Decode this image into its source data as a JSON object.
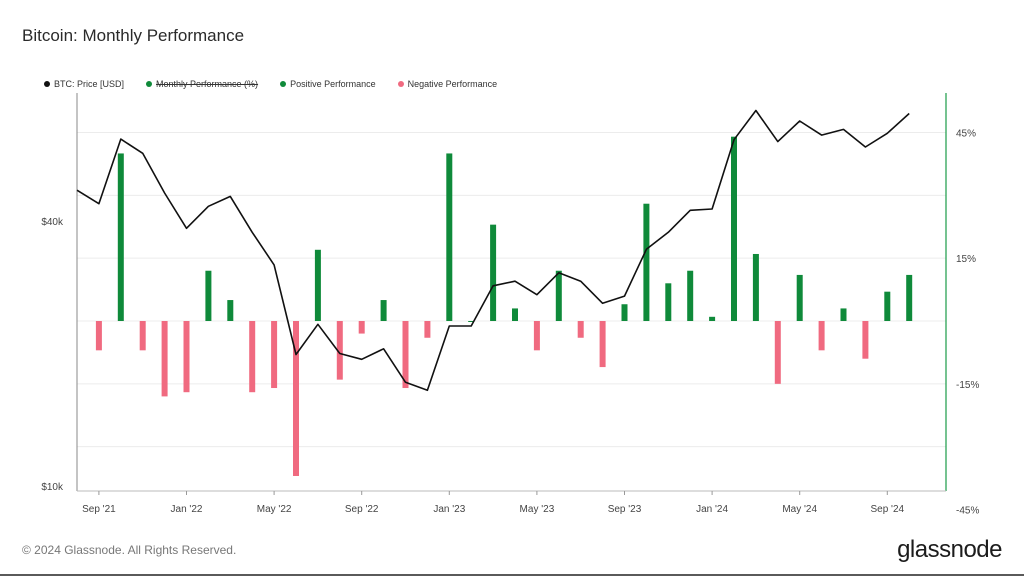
{
  "title": "Bitcoin: Monthly Performance",
  "legend": [
    {
      "label": "BTC: Price [USD]",
      "color": "#111111",
      "struck": false
    },
    {
      "label": "Monthly Performance (%)",
      "color": "#0f8a3a",
      "struck": true
    },
    {
      "label": "Positive Performance",
      "color": "#0f8a3a",
      "struck": false
    },
    {
      "label": "Negative Performance",
      "color": "#f06a80",
      "struck": false
    }
  ],
  "footer": "© 2024 Glassnode. All Rights Reserved.",
  "logo": "glassnode",
  "colors": {
    "positive": "#0f8a3a",
    "negative": "#f06a80",
    "price": "#111111",
    "grid": "#ececec",
    "right_axis": "#1a9b48"
  },
  "chart_data": {
    "type": "bar+line",
    "x_ticks": [
      "Sep '21",
      "Jan '22",
      "May '22",
      "Sep '22",
      "Jan '23",
      "May '23",
      "Sep '23",
      "Jan '24",
      "May '24",
      "Sep '24"
    ],
    "months": [
      "2021-08",
      "2021-09",
      "2021-10",
      "2021-11",
      "2021-12",
      "2022-01",
      "2022-02",
      "2022-03",
      "2022-04",
      "2022-05",
      "2022-06",
      "2022-07",
      "2022-08",
      "2022-09",
      "2022-10",
      "2022-11",
      "2022-12",
      "2023-01",
      "2023-02",
      "2023-03",
      "2023-04",
      "2023-05",
      "2023-06",
      "2023-07",
      "2023-08",
      "2023-09",
      "2023-10",
      "2023-11",
      "2023-12",
      "2024-01",
      "2024-02",
      "2024-03",
      "2024-04",
      "2024-05",
      "2024-06",
      "2024-07",
      "2024-08",
      "2024-09",
      "2024-10"
    ],
    "monthly_performance_pct": [
      null,
      -7,
      40,
      -7,
      -18,
      -17,
      12,
      5,
      -17,
      -16,
      -37,
      17,
      -14,
      -3,
      5,
      -16,
      -4,
      40,
      0,
      23,
      3,
      -7,
      12,
      -4,
      -11,
      4,
      28,
      9,
      12,
      1,
      44,
      16,
      -15,
      11,
      -7,
      3,
      -9,
      7,
      11
    ],
    "btc_price_usd": [
      47000,
      43800,
      61400,
      57000,
      46300,
      38500,
      43200,
      45500,
      37700,
      31800,
      19900,
      23300,
      20000,
      19400,
      20500,
      17200,
      16500,
      23100,
      23100,
      28500,
      29200,
      27200,
      30500,
      29200,
      26000,
      27000,
      34500,
      37700,
      42300,
      42600,
      61200,
      71300,
      60600,
      67500,
      62700,
      64600,
      58900,
      63300,
      70200
    ],
    "y_left": {
      "ticks": [
        {
          "label": "$40k",
          "value": 40000
        },
        {
          "label": "$10k",
          "value": 10000
        }
      ],
      "scale": "log"
    },
    "y_right": {
      "ticks": [
        {
          "label": "45%",
          "value": 45
        },
        {
          "label": "15%",
          "value": 15
        },
        {
          "label": "-15%",
          "value": -15
        },
        {
          "label": "-45%",
          "value": -45
        }
      ]
    },
    "grid": true
  }
}
